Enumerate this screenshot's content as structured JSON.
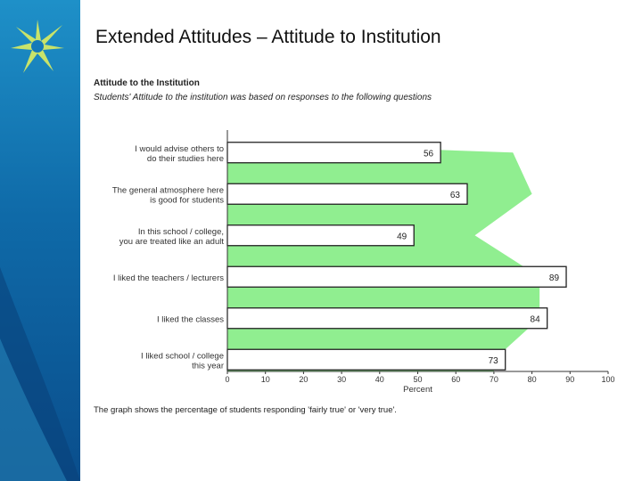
{
  "slide": {
    "title": "Extended Attitudes – Attitude to Institution"
  },
  "theme": {
    "sidebar_color": "#1479b8",
    "band_color": "#90ee90",
    "bar_fill": "#ffffff",
    "bar_stroke": "#222222",
    "logo_icon": "star-burst-logo"
  },
  "chart_data": {
    "type": "bar",
    "orientation": "horizontal",
    "title": "Attitude to the Institution",
    "subtitle": "Students' Attitude to the institution was based on responses to the following questions",
    "categories": [
      [
        "I would advise others to",
        "do their studies here"
      ],
      [
        "The general atmosphere here",
        "is good for students"
      ],
      [
        "In this school / college,",
        "you are treated like an adult"
      ],
      [
        "I liked the teachers / lecturers"
      ],
      [
        "I liked the classes"
      ],
      [
        "I liked school / college",
        "this year"
      ]
    ],
    "values": [
      56,
      63,
      49,
      89,
      84,
      73
    ],
    "band_values": [
      75,
      80,
      65,
      82,
      82,
      70
    ],
    "xlabel": "Percent",
    "xlim": [
      0,
      100
    ],
    "xticks": [
      "0",
      "10",
      "20",
      "30",
      "40",
      "50",
      "60",
      "70",
      "80",
      "90",
      "100"
    ],
    "footnote": "The graph shows the percentage of students responding 'fairly true' or 'very true'."
  }
}
